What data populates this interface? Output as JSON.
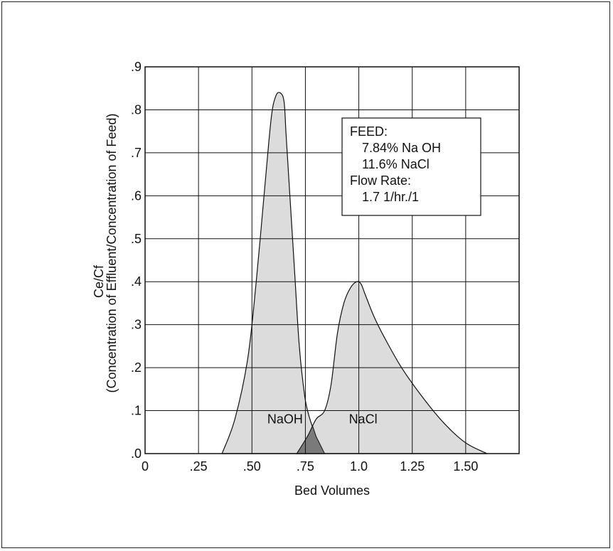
{
  "colors": {
    "background": "#ffffff",
    "grid": "#111111",
    "peak_fill": "#dcdcdc",
    "overlap_fill": "#7a7a7a",
    "stroke": "#111111"
  },
  "chart_data": {
    "type": "area",
    "xlabel": "Bed Volumes",
    "ylabel_line1": "Ce/Cf",
    "ylabel_line2": "(Concentration of Effluent/Concentration of Feed)",
    "xlim": [
      0,
      1.75
    ],
    "ylim": [
      0,
      0.9
    ],
    "x_ticks": [
      {
        "value": 0,
        "label": "0"
      },
      {
        "value": 0.25,
        "label": ".25"
      },
      {
        "value": 0.5,
        "label": ".50"
      },
      {
        "value": 0.75,
        "label": ".75"
      },
      {
        "value": 1.0,
        "label": "1.0"
      },
      {
        "value": 1.25,
        "label": "1.25"
      },
      {
        "value": 1.5,
        "label": "1.50"
      }
    ],
    "x_grid": [
      0,
      0.25,
      0.5,
      0.75,
      1.0,
      1.25,
      1.5,
      1.75
    ],
    "y_ticks": [
      {
        "value": 0.0,
        "label": ".0"
      },
      {
        "value": 0.1,
        "label": ".1"
      },
      {
        "value": 0.2,
        "label": ".2"
      },
      {
        "value": 0.3,
        "label": ".3"
      },
      {
        "value": 0.4,
        "label": ".4"
      },
      {
        "value": 0.5,
        "label": ".5"
      },
      {
        "value": 0.6,
        "label": ".6"
      },
      {
        "value": 0.7,
        "label": ".7"
      },
      {
        "value": 0.8,
        "label": ".8"
      },
      {
        "value": 0.9,
        "label": ".9"
      }
    ],
    "grid": true,
    "series": [
      {
        "name": "NaOH",
        "x": [
          0.36,
          0.42,
          0.48,
          0.52,
          0.56,
          0.59,
          0.61,
          0.63,
          0.65,
          0.66,
          0.68,
          0.7,
          0.72,
          0.74,
          0.76,
          0.8,
          0.84
        ],
        "y": [
          0.0,
          0.08,
          0.22,
          0.4,
          0.62,
          0.78,
          0.83,
          0.84,
          0.82,
          0.74,
          0.58,
          0.42,
          0.26,
          0.16,
          0.1,
          0.04,
          0.0
        ]
      },
      {
        "name": "NaCl",
        "x": [
          0.71,
          0.76,
          0.8,
          0.84,
          0.87,
          0.9,
          0.93,
          0.96,
          0.99,
          1.01,
          1.03,
          1.07,
          1.12,
          1.2,
          1.3,
          1.4,
          1.5,
          1.6
        ],
        "y": [
          0.0,
          0.04,
          0.08,
          0.1,
          0.16,
          0.28,
          0.35,
          0.385,
          0.4,
          0.395,
          0.37,
          0.32,
          0.27,
          0.2,
          0.13,
          0.07,
          0.025,
          0.0
        ]
      }
    ],
    "feed_box": {
      "line1": "FEED:",
      "line2": "7.84% Na OH",
      "line3": "11.6% NaCl",
      "line4": "Flow Rate:",
      "line5": "1.7 1/hr./1"
    }
  }
}
